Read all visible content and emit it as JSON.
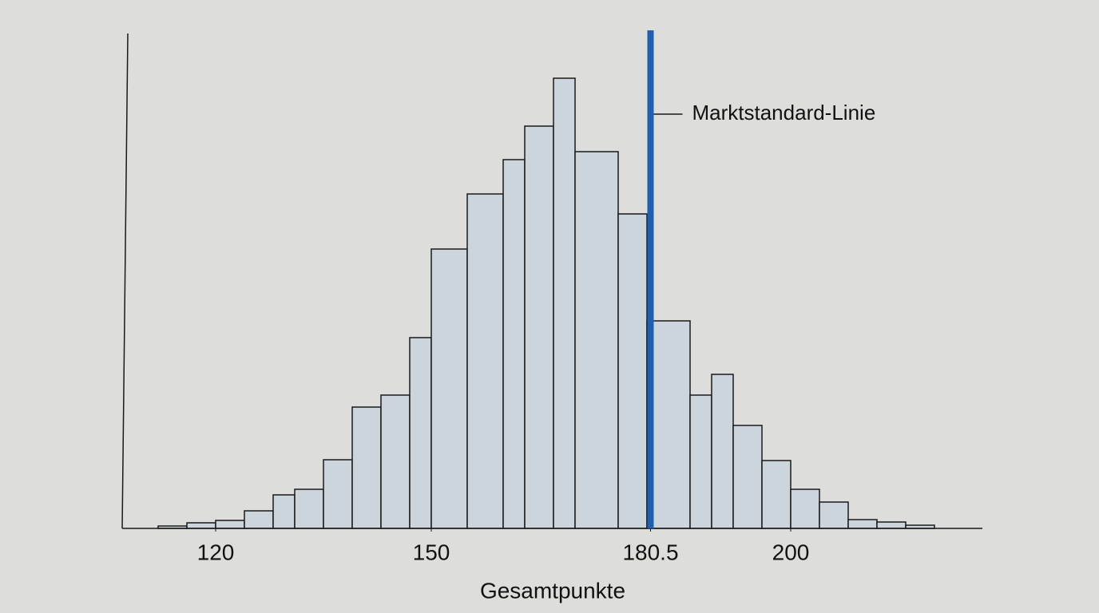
{
  "chart_data": {
    "type": "histogram",
    "x_label": "Gesamtpunkte",
    "bins": [
      112,
      116,
      120,
      124,
      128,
      131,
      135,
      139,
      143,
      147,
      150,
      155,
      160,
      163,
      167,
      170,
      176,
      180,
      186,
      189,
      192,
      196,
      200,
      204,
      208,
      212,
      216,
      220
    ],
    "values": [
      3,
      7,
      10,
      22,
      42,
      49,
      86,
      152,
      167,
      239,
      350,
      419,
      462,
      504,
      564,
      472,
      394,
      260,
      167,
      193,
      129,
      85,
      49,
      33,
      11,
      8,
      4
    ],
    "color": "#cdd5dc",
    "xlim": [
      107,
      227
    ],
    "xticks": [
      120,
      150,
      180.5,
      200
    ],
    "ylim": [
      0,
      620
    ],
    "reference_line": {
      "x": 180.5,
      "label": "Marktstandard-Linie",
      "color": "#1f5eb0"
    }
  }
}
